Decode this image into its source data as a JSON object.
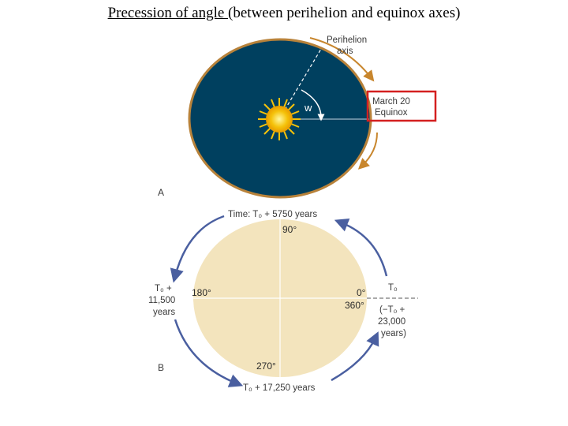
{
  "title": {
    "underlined": "Precession of angle ",
    "rest": "(between perihelion and equinox axes)"
  },
  "panel_a": {
    "panel_label": "A",
    "perihelion_line1": "Perihelion",
    "perihelion_line2": "axis",
    "angle_label": "w",
    "equinox_line1": "March 20",
    "equinox_line2": "Equinox"
  },
  "panel_b": {
    "panel_label": "B",
    "deg_90": "90°",
    "deg_180": "180°",
    "deg_0": "0°",
    "deg_360": "360°",
    "deg_270": "270°",
    "top_time": "Time: T₀ + 5750 years",
    "left_line1": "T₀ +",
    "left_line2": "11,500",
    "left_line3": "years",
    "right_line1": "T₀",
    "right_line2": "(−T₀ +",
    "right_line3": "23,000",
    "right_line4": "years)",
    "bottom_time": "T₀ + 17,250 years"
  },
  "colors": {
    "orbit_fill": "#00405f",
    "orbit_rim": "#b8823a",
    "arrow_orange": "#c8862d",
    "sun": "#f5c20a",
    "highlight_box": "#d42020",
    "ellipse_b_fill": "#f3e4bd",
    "arrow_blue": "#4a5fa0"
  }
}
